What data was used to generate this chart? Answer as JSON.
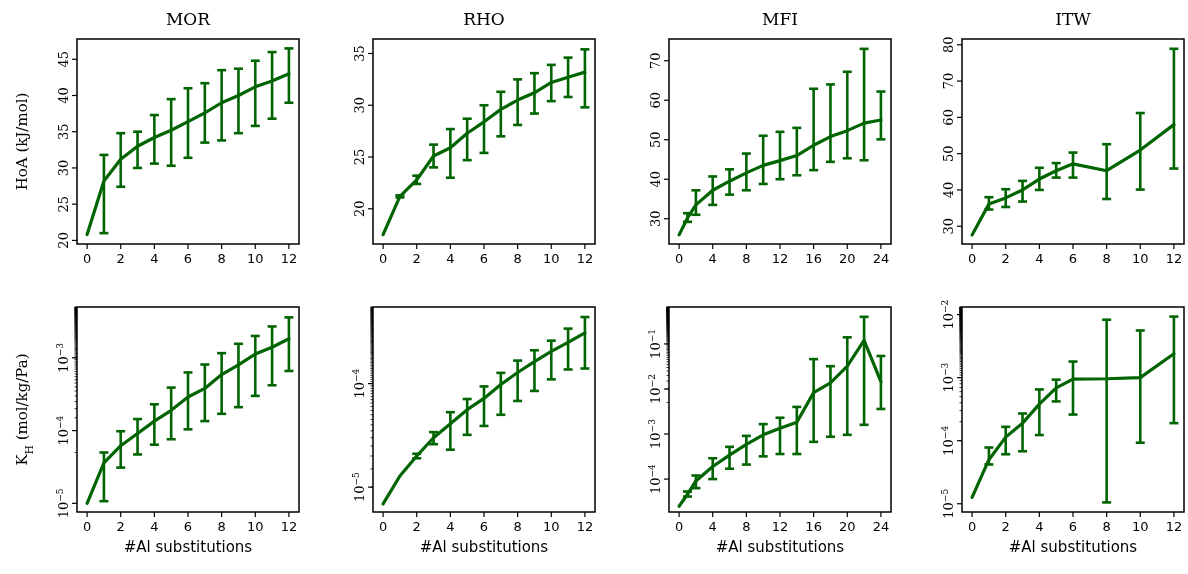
{
  "chart_data": [
    {
      "type": "line",
      "title": "MOR",
      "ylabel": "HoA (kJ/mol)",
      "color": "#006400",
      "x": [
        0,
        1,
        2,
        3,
        4,
        5,
        6,
        7,
        8,
        9,
        10,
        11,
        12
      ],
      "values": [
        20.8,
        28.2,
        31.2,
        33,
        34.2,
        35.2,
        36.4,
        37.6,
        39,
        40,
        41.2,
        42,
        43
      ],
      "errors": [
        null,
        [
          21,
          31.8
        ],
        [
          27.4,
          34.8
        ],
        [
          30,
          35
        ],
        [
          30.6,
          37.3
        ],
        [
          30.3,
          39.5
        ],
        [
          31.4,
          41
        ],
        [
          33.5,
          41.7
        ],
        [
          33.8,
          43.5
        ],
        [
          34.8,
          43.7
        ],
        [
          35.8,
          44.8
        ],
        [
          36.8,
          46
        ],
        [
          39,
          46.5
        ]
      ],
      "xlim": [
        -0.6,
        12.6
      ],
      "xticks": [
        0,
        2,
        4,
        6,
        8,
        10,
        12
      ],
      "ylim": [
        19.5,
        47.8
      ],
      "yticks": [
        20,
        25,
        30,
        35,
        40,
        45
      ]
    },
    {
      "type": "line",
      "title": "RHO",
      "color": "#006400",
      "x": [
        0,
        1,
        2,
        3,
        4,
        5,
        6,
        7,
        8,
        9,
        10,
        11,
        12
      ],
      "values": [
        17.5,
        21.2,
        22.8,
        25.1,
        25.9,
        27.3,
        28.4,
        29.6,
        30.5,
        31.2,
        32.2,
        32.7,
        33.2
      ],
      "errors": [
        null,
        [
          21.1,
          21.3
        ],
        [
          22.4,
          23.2
        ],
        [
          24,
          26.2
        ],
        [
          23,
          27.7
        ],
        [
          24.7,
          28.7
        ],
        [
          25.4,
          30
        ],
        [
          27,
          31.3
        ],
        [
          28.1,
          32.5
        ],
        [
          29.2,
          33.1
        ],
        [
          30.4,
          33.9
        ],
        [
          30.8,
          34.6
        ],
        [
          29.8,
          35.4
        ]
      ],
      "xlim": [
        -0.6,
        12.6
      ],
      "xticks": [
        0,
        2,
        4,
        6,
        8,
        10,
        12
      ],
      "ylim": [
        16.6,
        36.4
      ],
      "yticks": [
        20,
        25,
        30,
        35
      ]
    },
    {
      "type": "line",
      "title": "MFI",
      "color": "#006400",
      "x": [
        0,
        1,
        2,
        4,
        6,
        8,
        10,
        12,
        14,
        16,
        18,
        20,
        22,
        24
      ],
      "values": [
        25.9,
        30.2,
        33.5,
        37.2,
        39.5,
        41.6,
        43.5,
        44.7,
        46,
        48.6,
        50.8,
        52.3,
        54.2,
        55
      ],
      "errors": [
        null,
        [
          29.2,
          31.4
        ],
        [
          31,
          37.2
        ],
        [
          33.5,
          40.7
        ],
        [
          36.1,
          42.5
        ],
        [
          37.2,
          46.5
        ],
        [
          38.8,
          51
        ],
        [
          40,
          52
        ],
        [
          41,
          53
        ],
        [
          42.3,
          62.9
        ],
        [
          44.4,
          64
        ],
        [
          45.3,
          67.2
        ],
        [
          44.8,
          73
        ],
        [
          50.1,
          62.2
        ]
      ],
      "xlim": [
        -1.2,
        25.2
      ],
      "xticks": [
        0,
        4,
        8,
        12,
        16,
        20,
        24
      ],
      "ylim": [
        23.6,
        75.5
      ],
      "yticks": [
        30,
        40,
        50,
        60,
        70
      ]
    },
    {
      "type": "line",
      "title": "ITW",
      "color": "#006400",
      "x": [
        0,
        1,
        2,
        3,
        4,
        5,
        6,
        8,
        10,
        12
      ],
      "values": [
        27.6,
        36.1,
        37.8,
        40,
        43,
        45.3,
        47.2,
        45.3,
        51,
        58
      ],
      "errors": [
        null,
        [
          34.6,
          38
        ],
        [
          35.3,
          40.2
        ],
        [
          36.8,
          42.5
        ],
        [
          40,
          46.1
        ],
        [
          43.4,
          47.4
        ],
        [
          43.4,
          50.3
        ],
        [
          37.5,
          52.6
        ],
        [
          40.1,
          61.2
        ],
        [
          45.9,
          78.9
        ]
      ],
      "xlim": [
        -0.6,
        12.6
      ],
      "xticks": [
        0,
        2,
        4,
        6,
        8,
        10,
        12
      ],
      "ylim": [
        25.1,
        81.6
      ],
      "yticks": [
        30,
        40,
        50,
        60,
        70,
        80
      ]
    },
    {
      "type": "line",
      "ylabel": "K$_{H}$ (mol/kg/Pa)",
      "xlabel": "#Al substitutions",
      "log": true,
      "color": "#006400",
      "x": [
        0,
        1,
        2,
        3,
        4,
        5,
        6,
        7,
        8,
        9,
        10,
        11,
        12
      ],
      "values": [
        1e-05,
        3.6e-05,
        6.2e-05,
        9.1e-05,
        0.000135,
        0.00019,
        0.00029,
        0.00038,
        0.00059,
        0.0008,
        0.00113,
        0.0014,
        0.00183
      ],
      "errors": [
        null,
        [
          1.07e-05,
          5e-05
        ],
        [
          3.1e-05,
          9.8e-05
        ],
        [
          4.7e-05,
          0.000144
        ],
        [
          6.4e-05,
          0.00023
        ],
        [
          7.6e-05,
          0.00039
        ],
        [
          0.000104,
          0.00063
        ],
        [
          0.000135,
          0.00081
        ],
        [
          0.00017,
          0.00116
        ],
        [
          0.00021,
          0.00156
        ],
        [
          0.0003,
          0.002
        ],
        [
          0.00042,
          0.0027
        ],
        [
          0.00066,
          0.0036
        ]
      ],
      "xlim": [
        -0.6,
        12.6
      ],
      "xticks": [
        0,
        2,
        4,
        6,
        8,
        10,
        12
      ],
      "ylim": [
        7.6e-06,
        0.005
      ],
      "yticks": [
        {
          "value": 1e-05,
          "label": "10$^{−5}$"
        },
        {
          "value": 0.0001,
          "label": "10$^{−4}$"
        },
        {
          "value": 0.001,
          "label": "10$^{−3}$"
        }
      ]
    },
    {
      "type": "line",
      "xlabel": "#Al substitutions",
      "log": true,
      "color": "#006400",
      "x": [
        0,
        1,
        2,
        3,
        4,
        5,
        6,
        7,
        8,
        9,
        10,
        11,
        12
      ],
      "values": [
        6.9e-06,
        1.28e-05,
        2e-05,
        3e-05,
        4.1e-05,
        5.6e-05,
        7.2e-05,
        9.8e-05,
        0.000128,
        0.000163,
        0.000205,
        0.00025,
        0.00031
      ],
      "errors": [
        null,
        null,
        [
          1.9e-05,
          2.1e-05
        ],
        [
          2.6e-05,
          3.4e-05
        ],
        [
          2.3e-05,
          5.3e-05
        ],
        [
          3.2e-05,
          7.1e-05
        ],
        [
          3.9e-05,
          9.4e-05
        ],
        [
          5e-05,
          0.000127
        ],
        [
          6.8e-05,
          0.000167
        ],
        [
          8.5e-05,
          0.00021
        ],
        [
          0.00011,
          0.00026
        ],
        [
          0.000137,
          0.00034
        ],
        [
          0.00014,
          0.00044
        ]
      ],
      "xlim": [
        -0.6,
        12.6
      ],
      "xticks": [
        0,
        2,
        4,
        6,
        8,
        10,
        12
      ],
      "ylim": [
        5.75e-06,
        0.00055
      ],
      "yticks": [
        {
          "value": 1e-05,
          "label": "10$^{−5}$"
        },
        {
          "value": 0.0001,
          "label": "10$^{−4}$"
        }
      ]
    },
    {
      "type": "line",
      "xlabel": "#Al substitutions",
      "log": true,
      "color": "#006400",
      "x": [
        0,
        1,
        2,
        4,
        6,
        8,
        10,
        12,
        14,
        16,
        18,
        20,
        22,
        24
      ],
      "values": [
        2.5e-05,
        4.6e-05,
        9.1e-05,
        0.00019,
        0.00034,
        0.00059,
        0.00096,
        0.00135,
        0.00183,
        0.0083,
        0.0137,
        0.032,
        0.12,
        0.0145
      ],
      "errors": [
        null,
        [
          4.1e-05,
          5.3e-05
        ],
        [
          6.3e-05,
          0.00012
        ],
        [
          0.0001,
          0.00029
        ],
        [
          0.00017,
          0.00052
        ],
        [
          0.00021,
          0.00091
        ],
        [
          0.00032,
          0.00166
        ],
        [
          0.00036,
          0.0023
        ],
        [
          0.00036,
          0.004
        ],
        [
          0.00067,
          0.046
        ],
        [
          0.00087,
          0.032
        ],
        [
          0.00096,
          0.14
        ],
        [
          0.0016,
          0.4
        ],
        [
          0.0036,
          0.054
        ]
      ],
      "xlim": [
        -1.2,
        25.2
      ],
      "xticks": [
        0,
        4,
        8,
        12,
        16,
        20,
        24
      ],
      "ylim": [
        1.86e-05,
        0.66
      ],
      "yticks": [
        {
          "value": 0.0001,
          "label": "10$^{−4}$"
        },
        {
          "value": 0.001,
          "label": "10$^{−3}$"
        },
        {
          "value": 0.01,
          "label": "10$^{−2}$"
        },
        {
          "value": 0.1,
          "label": "10$^{−1}$"
        }
      ]
    },
    {
      "type": "line",
      "xlabel": "#Al substitutions",
      "log": true,
      "color": "#006400",
      "x": [
        0,
        1,
        2,
        3,
        4,
        5,
        6,
        8,
        10,
        12
      ],
      "values": [
        1.26e-05,
        5e-05,
        0.000114,
        0.00019,
        0.00038,
        0.00069,
        0.00095,
        0.00096,
        0.001,
        0.0024
      ],
      "errors": [
        null,
        [
          4.2e-05,
          7.8e-05
        ],
        [
          6.1e-05,
          0.000166
        ],
        [
          6.8e-05,
          0.00027
        ],
        [
          0.000123,
          0.00065
        ],
        [
          0.00042,
          0.00093
        ],
        [
          0.00026,
          0.0018
        ],
        [
          1.05e-05,
          0.0083
        ],
        [
          9.3e-05,
          0.0056
        ],
        [
          0.00019,
          0.0093
        ]
      ],
      "xlim": [
        -0.6,
        12.6
      ],
      "xticks": [
        0,
        2,
        4,
        6,
        8,
        10,
        12
      ],
      "ylim": [
        7.4e-06,
        0.0132
      ],
      "yticks": [
        {
          "value": 1e-05,
          "label": "10$^{−5}$"
        },
        {
          "value": 0.0001,
          "label": "10$^{−4}$"
        },
        {
          "value": 0.001,
          "label": "10$^{−3}$"
        },
        {
          "value": 0.01,
          "label": "10$^{−2}$"
        }
      ]
    }
  ]
}
